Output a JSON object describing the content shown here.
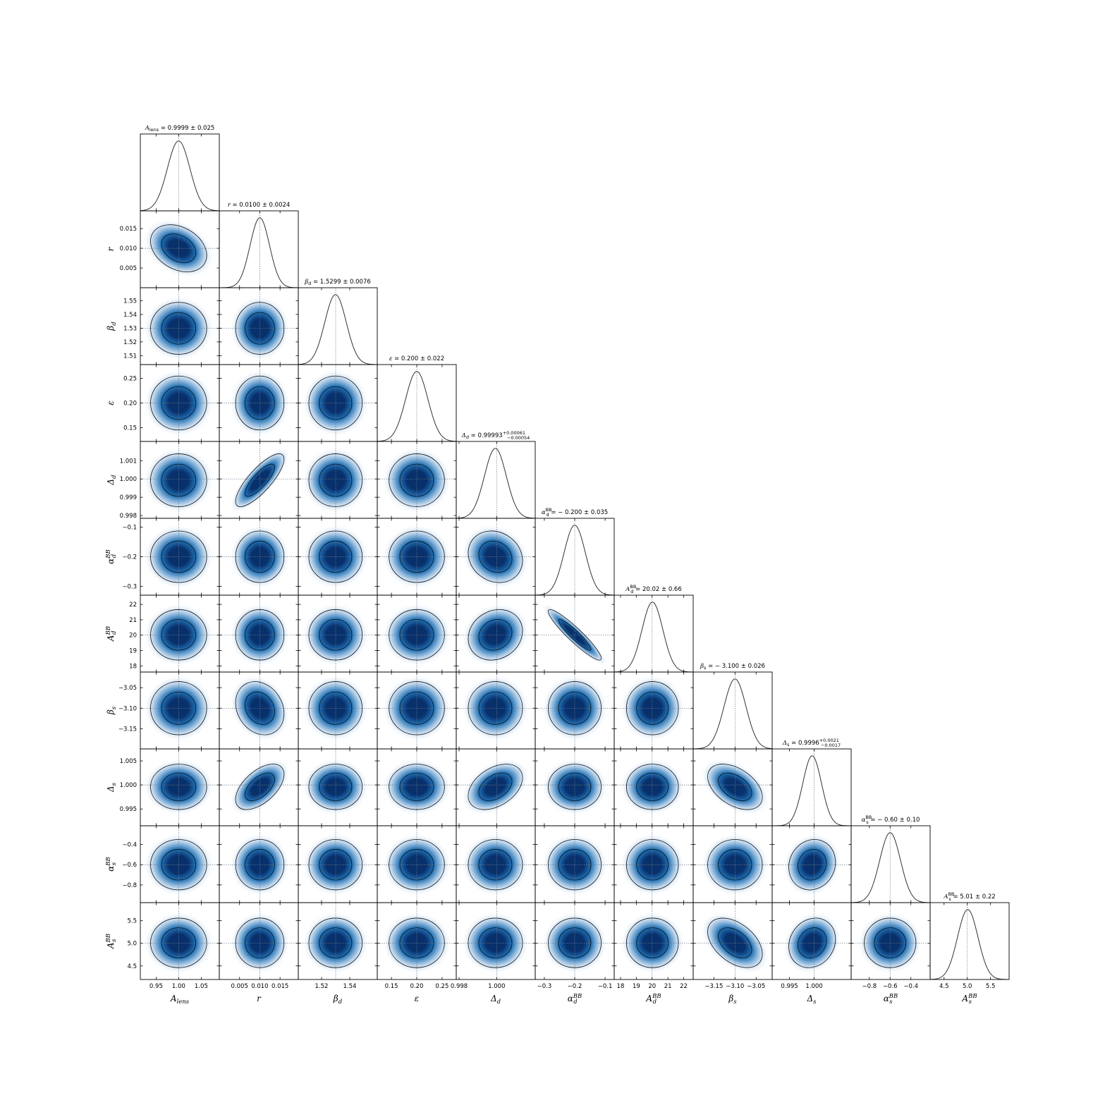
{
  "chart_data": {
    "type": "corner",
    "description_units": "posterior samples summarised per parameter",
    "parameters": [
      {
        "key": "Alens",
        "axis_label": {
          "base": "A",
          "sub": "lens",
          "sup": ""
        },
        "title": "A_lens = 0.9999 ± 0.025",
        "title_parts": {
          "base": "A",
          "sub": "lens",
          "sup": "",
          "value": " = 0.9999 ± 0.025"
        },
        "truth": 1.0,
        "mean": 0.9999,
        "sigma": 0.025,
        "range": [
          0.915,
          1.09
        ],
        "ticks": [
          0.95,
          1.0,
          1.05
        ],
        "tick_labels": [
          "0.95",
          "1.00",
          "1.05"
        ]
      },
      {
        "key": "r",
        "axis_label": {
          "base": "r",
          "sub": "",
          "sup": ""
        },
        "title": "r = 0.0100 ± 0.0024",
        "title_parts": {
          "base": "r",
          "sub": "",
          "sup": "",
          "value": " = 0.0100 ± 0.0024"
        },
        "truth": 0.01,
        "mean": 0.01,
        "sigma": 0.0024,
        "range": [
          0.0,
          0.0195
        ],
        "ticks": [
          0.005,
          0.01,
          0.015
        ],
        "tick_labels": [
          "0.005",
          "0.010",
          "0.015"
        ]
      },
      {
        "key": "beta_d",
        "axis_label": {
          "base": "β",
          "sub": "d",
          "sup": ""
        },
        "title": "β_d = 1.5299 ± 0.0076",
        "title_parts": {
          "base": "β",
          "sub": "d",
          "sup": "",
          "value": " = 1.5299 ± 0.0076"
        },
        "truth": 1.53,
        "mean": 1.5299,
        "sigma": 0.0076,
        "range": [
          1.5035,
          1.5595
        ],
        "ticks": [
          1.52,
          1.54
        ],
        "tick_labels": [
          "1.52",
          "1.54"
        ],
        "y_ticks": [
          1.51,
          1.52,
          1.53,
          1.54,
          1.55
        ],
        "y_tick_labels": [
          "1.51",
          "1.52",
          "1.53",
          "1.54",
          "1.55"
        ]
      },
      {
        "key": "epsilon",
        "axis_label": {
          "base": "ε",
          "sub": "",
          "sup": ""
        },
        "title": "ε = 0.200 ± 0.022",
        "title_parts": {
          "base": "ε",
          "sub": "",
          "sup": "",
          "value": " = 0.200 ± 0.022"
        },
        "truth": 0.2,
        "mean": 0.2,
        "sigma": 0.022,
        "range": [
          0.122,
          0.278
        ],
        "ticks": [
          0.15,
          0.2,
          0.25
        ],
        "tick_labels": [
          "0.15",
          "0.20",
          "0.25"
        ]
      },
      {
        "key": "Delta_d",
        "axis_label": {
          "base": "Δ",
          "sub": "d",
          "sup": ""
        },
        "title": "Δ_d = 0.99993 +0.00061 −0.00054",
        "title_parts": {
          "base": "Δ",
          "sub": "d",
          "sup": "",
          "value": " = 0.99993",
          "err_up": "+0.00061",
          "err_down": "−0.00054"
        },
        "truth": 1.0,
        "mean": 0.99993,
        "sigma": 0.00058,
        "range": [
          0.99785,
          1.00205
        ],
        "ticks": [
          0.998,
          1.0
        ],
        "tick_labels": [
          "0.998",
          "1.000"
        ],
        "y_ticks": [
          0.998,
          0.999,
          1.0,
          1.001
        ],
        "y_tick_labels": [
          "0.998",
          "0.999",
          "1.000",
          "1.001"
        ]
      },
      {
        "key": "alpha_d",
        "axis_label": {
          "base": "α",
          "sub": "d",
          "sup": "BB"
        },
        "title": "α_d^BB = −0.200 ± 0.035",
        "title_parts": {
          "base": "α",
          "sub": "d",
          "sup": "BB",
          "value": " = − 0.200 ± 0.035"
        },
        "truth": -0.2,
        "mean": -0.2,
        "sigma": 0.035,
        "range": [
          -0.33,
          -0.07
        ],
        "ticks": [
          -0.3,
          -0.2,
          -0.1
        ],
        "tick_labels": [
          "−0.3",
          "−0.2",
          "−0.1"
        ]
      },
      {
        "key": "Ad",
        "axis_label": {
          "base": "A",
          "sub": "d",
          "sup": "BB"
        },
        "title": "A_d^BB = 20.02 ± 0.66",
        "title_parts": {
          "base": "A",
          "sub": "d",
          "sup": "BB",
          "value": " = 20.02 ± 0.66"
        },
        "truth": 20.0,
        "mean": 20.02,
        "sigma": 0.66,
        "range": [
          17.6,
          22.6
        ],
        "ticks": [
          18,
          19,
          20,
          21,
          22
        ],
        "tick_labels": [
          "18",
          "19",
          "20",
          "21",
          "22"
        ]
      },
      {
        "key": "beta_s",
        "axis_label": {
          "base": "β",
          "sub": "s",
          "sup": ""
        },
        "title": "β_s = −3.100 ± 0.026",
        "title_parts": {
          "base": "β",
          "sub": "s",
          "sup": "",
          "value": " = − 3.100 ± 0.026"
        },
        "truth": -3.1,
        "mean": -3.1,
        "sigma": 0.026,
        "range": [
          -3.199,
          -3.012
        ],
        "ticks": [
          -3.15,
          -3.1,
          -3.05
        ],
        "tick_labels": [
          "−3.15",
          "−3.10",
          "−3.05"
        ]
      },
      {
        "key": "Delta_s",
        "axis_label": {
          "base": "Δ",
          "sub": "s",
          "sup": ""
        },
        "title": "Δ_s = 0.9996 +0.0021 −0.0017",
        "title_parts": {
          "base": "Δ",
          "sub": "s",
          "sup": "",
          "value": " = 0.9996",
          "err_up": "+0.0021",
          "err_down": "−0.0017"
        },
        "truth": 1.0,
        "mean": 0.9996,
        "sigma": 0.0019,
        "range": [
          0.9915,
          1.0075
        ],
        "ticks": [
          0.995,
          1.0
        ],
        "tick_labels": [
          "0.995",
          "1.000"
        ],
        "y_ticks": [
          0.995,
          1.0,
          1.005
        ],
        "y_tick_labels": [
          "0.995",
          "1.000",
          "1.005"
        ]
      },
      {
        "key": "alpha_s",
        "axis_label": {
          "base": "α",
          "sub": "s",
          "sup": "BB"
        },
        "title": "α_s^BB = −0.60 ± 0.10",
        "title_parts": {
          "base": "α",
          "sub": "s",
          "sup": "BB",
          "value": " = − 0.60 ± 0.10"
        },
        "truth": -0.6,
        "mean": -0.6,
        "sigma": 0.1,
        "range": [
          -0.975,
          -0.215
        ],
        "ticks": [
          -0.8,
          -0.6,
          -0.4
        ],
        "tick_labels": [
          "−0.8",
          "−0.6",
          "−0.4"
        ]
      },
      {
        "key": "As",
        "axis_label": {
          "base": "A",
          "sub": "s",
          "sup": "BB"
        },
        "title": "A_s^BB = 5.01 ± 0.22",
        "title_parts": {
          "base": "A",
          "sub": "s",
          "sup": "BB",
          "value": " = 5.01 ± 0.22"
        },
        "truth": 5.0,
        "mean": 5.01,
        "sigma": 0.22,
        "range": [
          4.2,
          5.9
        ],
        "ticks": [
          4.5,
          5.0,
          5.5
        ],
        "tick_labels": [
          "4.5",
          "5.0",
          "5.5"
        ]
      }
    ],
    "correlations": [
      {
        "pair": [
          "Alens",
          "r"
        ],
        "rho": -0.3
      },
      {
        "pair": [
          "r",
          "Delta_d"
        ],
        "rho": 0.8
      },
      {
        "pair": [
          "r",
          "Delta_s"
        ],
        "rho": 0.55
      },
      {
        "pair": [
          "r",
          "beta_s"
        ],
        "rho": -0.2
      },
      {
        "pair": [
          "Delta_d",
          "Delta_s"
        ],
        "rho": 0.4
      },
      {
        "pair": [
          "Delta_d",
          "alpha_d"
        ],
        "rho": -0.15
      },
      {
        "pair": [
          "Delta_d",
          "Ad"
        ],
        "rho": 0.15
      },
      {
        "pair": [
          "alpha_d",
          "Ad"
        ],
        "rho": -0.93
      },
      {
        "pair": [
          "beta_s",
          "Delta_s"
        ],
        "rho": -0.45
      },
      {
        "pair": [
          "beta_s",
          "As"
        ],
        "rho": -0.45
      },
      {
        "pair": [
          "Delta_s",
          "alpha_s"
        ],
        "rho": 0.1
      },
      {
        "pair": [
          "Delta_s",
          "As"
        ],
        "rho": 0.15
      }
    ],
    "contour_levels_sigma": [
      1,
      2
    ],
    "colormap": {
      "dark": "#08306b",
      "mid": "#2171b5",
      "light": "#c6dbef"
    },
    "line_color": "#000000",
    "truth_line_color": "#6a7a8a",
    "grid": false,
    "legend": "none"
  }
}
